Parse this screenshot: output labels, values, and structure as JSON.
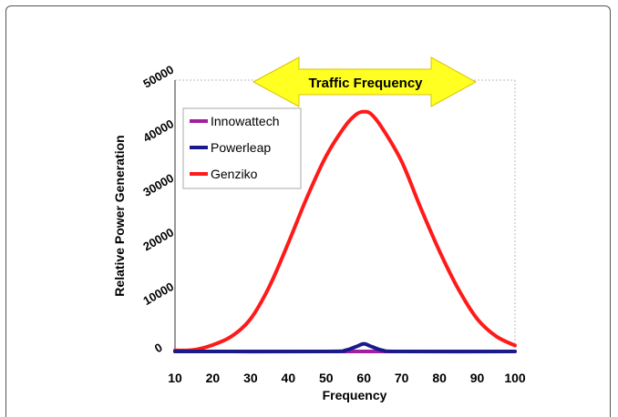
{
  "chart_data": {
    "type": "line",
    "xlabel": "Frequency",
    "ylabel": "Relative Power Generation",
    "xlim": [
      10,
      100
    ],
    "ylim": [
      0,
      50000
    ],
    "xticks": [
      10,
      20,
      30,
      40,
      50,
      60,
      70,
      80,
      90,
      100
    ],
    "yticks": [
      0,
      10000,
      20000,
      30000,
      40000,
      50000
    ],
    "grid": false,
    "legend_position": "top-left",
    "annotation": {
      "text": "Traffic Frequency",
      "color": "#ffff22"
    },
    "series": [
      {
        "name": "Innowattech",
        "color": "#a020a0",
        "x": [
          10,
          20,
          30,
          40,
          50,
          60,
          70,
          80,
          90,
          100
        ],
        "y": [
          0,
          0,
          0,
          0,
          0,
          0,
          0,
          0,
          0,
          0
        ]
      },
      {
        "name": "Powerleap",
        "color": "#1a1a8c",
        "x": [
          10,
          50,
          55,
          58,
          60,
          62,
          65,
          70,
          100
        ],
        "y": [
          0,
          0,
          200,
          900,
          1400,
          900,
          200,
          0,
          0
        ]
      },
      {
        "name": "Genziko",
        "color": "#ff1a1a",
        "x": [
          10,
          15,
          20,
          25,
          30,
          35,
          40,
          45,
          50,
          55,
          58,
          60,
          62,
          65,
          70,
          75,
          80,
          85,
          90,
          95,
          100
        ],
        "y": [
          200,
          300,
          1200,
          2800,
          6000,
          12000,
          20000,
          28500,
          36000,
          41500,
          43700,
          44200,
          43700,
          41000,
          35000,
          26500,
          18500,
          11500,
          6000,
          2800,
          1100
        ]
      }
    ]
  }
}
